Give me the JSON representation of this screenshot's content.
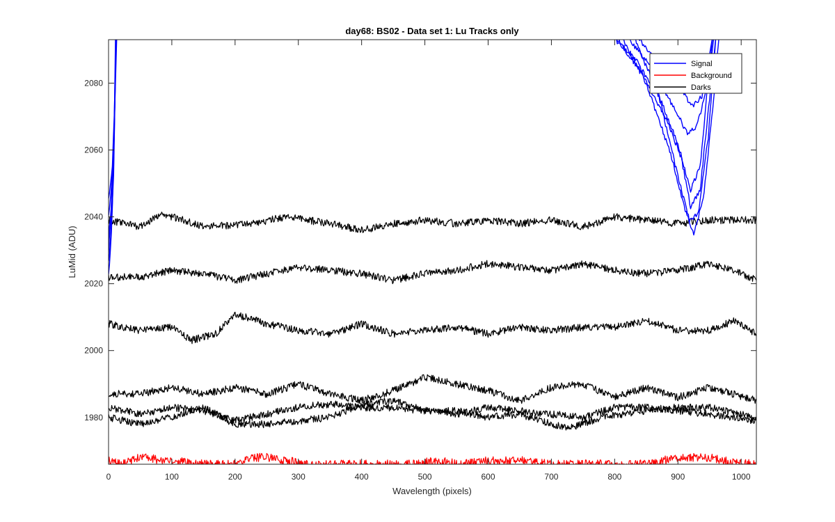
{
  "chart_data": {
    "type": "line",
    "title": "day68: BS02 - Data set 1: Lu Tracks only",
    "xlabel": "Wavelength (pixels)",
    "ylabel": "LuMid (ADU)",
    "xlim": [
      0,
      1024
    ],
    "ylim": [
      1966,
      2093
    ],
    "xticks": [
      0,
      100,
      200,
      300,
      400,
      500,
      600,
      700,
      800,
      900,
      1000
    ],
    "yticks": [
      1980,
      2000,
      2020,
      2040,
      2060,
      2080
    ],
    "grid": false,
    "legend": {
      "placement": "top-right",
      "entries": [
        {
          "name": "Signal",
          "color": "#0000ff"
        },
        {
          "name": "Background",
          "color": "#ff0000"
        },
        {
          "name": "Darks",
          "color": "#000000"
        }
      ]
    },
    "series": [
      {
        "name": "Darks",
        "color": "#000000",
        "points": [
          [
            0,
            2039
          ],
          [
            50,
            2037
          ],
          [
            85,
            2041
          ],
          [
            150,
            2037
          ],
          [
            230,
            2038
          ],
          [
            280,
            2040
          ],
          [
            350,
            2038
          ],
          [
            400,
            2036
          ],
          [
            450,
            2038
          ],
          [
            500,
            2039
          ],
          [
            550,
            2038
          ],
          [
            600,
            2039
          ],
          [
            650,
            2038
          ],
          [
            700,
            2039
          ],
          [
            750,
            2037
          ],
          [
            800,
            2040
          ],
          [
            850,
            2039
          ],
          [
            900,
            2038
          ],
          [
            950,
            2039
          ],
          [
            1024,
            2039
          ]
        ]
      },
      {
        "name": "Darks",
        "color": "#000000",
        "points": [
          [
            0,
            2022
          ],
          [
            50,
            2022
          ],
          [
            100,
            2024
          ],
          [
            150,
            2023
          ],
          [
            200,
            2021
          ],
          [
            250,
            2023
          ],
          [
            300,
            2025
          ],
          [
            350,
            2024
          ],
          [
            400,
            2023
          ],
          [
            450,
            2021
          ],
          [
            500,
            2023
          ],
          [
            550,
            2024
          ],
          [
            600,
            2026
          ],
          [
            650,
            2025
          ],
          [
            700,
            2024
          ],
          [
            750,
            2026
          ],
          [
            800,
            2024
          ],
          [
            850,
            2023
          ],
          [
            900,
            2024
          ],
          [
            950,
            2026
          ],
          [
            1000,
            2023
          ],
          [
            1024,
            2021
          ]
        ]
      },
      {
        "name": "Darks",
        "color": "#000000",
        "points": [
          [
            0,
            2008
          ],
          [
            50,
            2006
          ],
          [
            100,
            2007
          ],
          [
            130,
            2003
          ],
          [
            170,
            2005
          ],
          [
            200,
            2011
          ],
          [
            250,
            2008
          ],
          [
            300,
            2006
          ],
          [
            350,
            2005
          ],
          [
            400,
            2008
          ],
          [
            450,
            2005
          ],
          [
            500,
            2006
          ],
          [
            550,
            2007
          ],
          [
            600,
            2005
          ],
          [
            650,
            2007
          ],
          [
            700,
            2006
          ],
          [
            750,
            2007
          ],
          [
            800,
            2007
          ],
          [
            850,
            2009
          ],
          [
            900,
            2006
          ],
          [
            950,
            2006
          ],
          [
            990,
            2009
          ],
          [
            1024,
            2005
          ]
        ]
      },
      {
        "name": "Darks",
        "color": "#000000",
        "points": [
          [
            0,
            1987
          ],
          [
            50,
            1987
          ],
          [
            100,
            1989
          ],
          [
            150,
            1987
          ],
          [
            200,
            1989
          ],
          [
            250,
            1987
          ],
          [
            300,
            1990
          ],
          [
            350,
            1987
          ],
          [
            400,
            1985
          ],
          [
            450,
            1988
          ],
          [
            500,
            1992
          ],
          [
            550,
            1990
          ],
          [
            600,
            1988
          ],
          [
            650,
            1985
          ],
          [
            700,
            1989
          ],
          [
            750,
            1990
          ],
          [
            800,
            1986
          ],
          [
            850,
            1989
          ],
          [
            900,
            1986
          ],
          [
            950,
            1989
          ],
          [
            1024,
            1985
          ]
        ]
      },
      {
        "name": "Darks",
        "color": "#000000",
        "points": [
          [
            0,
            1983
          ],
          [
            50,
            1981
          ],
          [
            100,
            1983
          ],
          [
            150,
            1982
          ],
          [
            200,
            1979
          ],
          [
            250,
            1981
          ],
          [
            300,
            1983
          ],
          [
            350,
            1984
          ],
          [
            400,
            1983
          ],
          [
            450,
            1983
          ],
          [
            500,
            1982
          ],
          [
            550,
            1981
          ],
          [
            600,
            1983
          ],
          [
            650,
            1982
          ],
          [
            700,
            1981
          ],
          [
            750,
            1980
          ],
          [
            800,
            1983
          ],
          [
            850,
            1983
          ],
          [
            900,
            1982
          ],
          [
            950,
            1981
          ],
          [
            1024,
            1979
          ]
        ]
      },
      {
        "name": "Darks",
        "color": "#000000",
        "points": [
          [
            0,
            1980
          ],
          [
            50,
            1978
          ],
          [
            100,
            1980
          ],
          [
            150,
            1983
          ],
          [
            200,
            1978
          ],
          [
            250,
            1978
          ],
          [
            300,
            1979
          ],
          [
            350,
            1980
          ],
          [
            400,
            1984
          ],
          [
            450,
            1985
          ],
          [
            500,
            1982
          ],
          [
            550,
            1982
          ],
          [
            600,
            1980
          ],
          [
            650,
            1981
          ],
          [
            700,
            1978
          ],
          [
            730,
            1977
          ],
          [
            780,
            1980
          ],
          [
            850,
            1982
          ],
          [
            900,
            1983
          ],
          [
            950,
            1983
          ],
          [
            1024,
            1980
          ]
        ]
      },
      {
        "name": "Background",
        "color": "#ff0000",
        "points": [
          [
            0,
            1967
          ],
          [
            20,
            1966
          ],
          [
            50,
            1968
          ],
          [
            100,
            1967
          ],
          [
            150,
            1966
          ],
          [
            180,
            1966
          ],
          [
            200,
            1966
          ],
          [
            230,
            1968
          ],
          [
            260,
            1968
          ],
          [
            280,
            1967
          ],
          [
            320,
            1966
          ],
          [
            400,
            1966
          ],
          [
            480,
            1966
          ],
          [
            520,
            1967
          ],
          [
            560,
            1966
          ],
          [
            600,
            1967
          ],
          [
            660,
            1967
          ],
          [
            700,
            1966
          ],
          [
            760,
            1966
          ],
          [
            800,
            1966
          ],
          [
            850,
            1966
          ],
          [
            900,
            1968
          ],
          [
            950,
            1968
          ],
          [
            980,
            1967
          ],
          [
            1024,
            1966
          ]
        ]
      },
      {
        "name": "Signal",
        "color": "#0000ff",
        "points": [
          [
            0,
            2022
          ],
          [
            3,
            2030
          ],
          [
            6,
            2042
          ],
          [
            9,
            2065
          ],
          [
            12,
            2094
          ]
        ]
      },
      {
        "name": "Signal",
        "color": "#0000ff",
        "points": [
          [
            0,
            2045
          ],
          [
            3,
            2050
          ],
          [
            6,
            2055
          ],
          [
            9,
            2070
          ],
          [
            12,
            2094
          ]
        ]
      },
      {
        "name": "Signal",
        "color": "#0000ff",
        "points": [
          [
            0,
            2040
          ],
          [
            4,
            2048
          ],
          [
            8,
            2060
          ],
          [
            13,
            2094
          ]
        ]
      },
      {
        "name": "Signal",
        "color": "#0000ff",
        "points": [
          [
            0,
            2026
          ],
          [
            4,
            2036
          ],
          [
            8,
            2052
          ],
          [
            12,
            2094
          ]
        ]
      },
      {
        "name": "Signal",
        "color": "#0000ff",
        "points": [
          [
            0,
            2033
          ],
          [
            4,
            2043
          ],
          [
            8,
            2058
          ],
          [
            12,
            2094
          ]
        ]
      },
      {
        "name": "Signal",
        "color": "#0000ff",
        "points": [
          [
            0,
            2030
          ],
          [
            4,
            2040
          ],
          [
            8,
            2055
          ],
          [
            11,
            2094
          ]
        ]
      },
      {
        "name": "Signal",
        "color": "#0000ff",
        "points": [
          [
            795,
            2094
          ],
          [
            830,
            2088
          ],
          [
            870,
            2076
          ],
          [
            900,
            2062
          ],
          [
            920,
            2048
          ],
          [
            935,
            2055
          ],
          [
            950,
            2085
          ],
          [
            955,
            2094
          ]
        ]
      },
      {
        "name": "Signal",
        "color": "#0000ff",
        "points": [
          [
            800,
            2094
          ],
          [
            840,
            2084
          ],
          [
            880,
            2070
          ],
          [
            905,
            2058
          ],
          [
            920,
            2043
          ],
          [
            935,
            2048
          ],
          [
            950,
            2075
          ],
          [
            960,
            2094
          ]
        ]
      },
      {
        "name": "Signal",
        "color": "#0000ff",
        "points": [
          [
            820,
            2094
          ],
          [
            860,
            2084
          ],
          [
            895,
            2072
          ],
          [
            915,
            2065
          ],
          [
            930,
            2067
          ],
          [
            945,
            2078
          ],
          [
            957,
            2094
          ]
        ]
      },
      {
        "name": "Signal",
        "color": "#0000ff",
        "points": [
          [
            835,
            2094
          ],
          [
            870,
            2086
          ],
          [
            905,
            2078
          ],
          [
            922,
            2073
          ],
          [
            938,
            2076
          ],
          [
            955,
            2094
          ]
        ]
      },
      {
        "name": "Signal",
        "color": "#0000ff",
        "points": [
          [
            810,
            2094
          ],
          [
            850,
            2080
          ],
          [
            890,
            2058
          ],
          [
            910,
            2043
          ],
          [
            925,
            2035
          ],
          [
            940,
            2045
          ],
          [
            955,
            2072
          ],
          [
            965,
            2094
          ]
        ]
      },
      {
        "name": "Signal",
        "color": "#0000ff",
        "points": [
          [
            830,
            2094
          ],
          [
            870,
            2076
          ],
          [
            900,
            2052
          ],
          [
            918,
            2039
          ],
          [
            932,
            2041
          ],
          [
            948,
            2064
          ],
          [
            960,
            2094
          ]
        ]
      }
    ]
  }
}
